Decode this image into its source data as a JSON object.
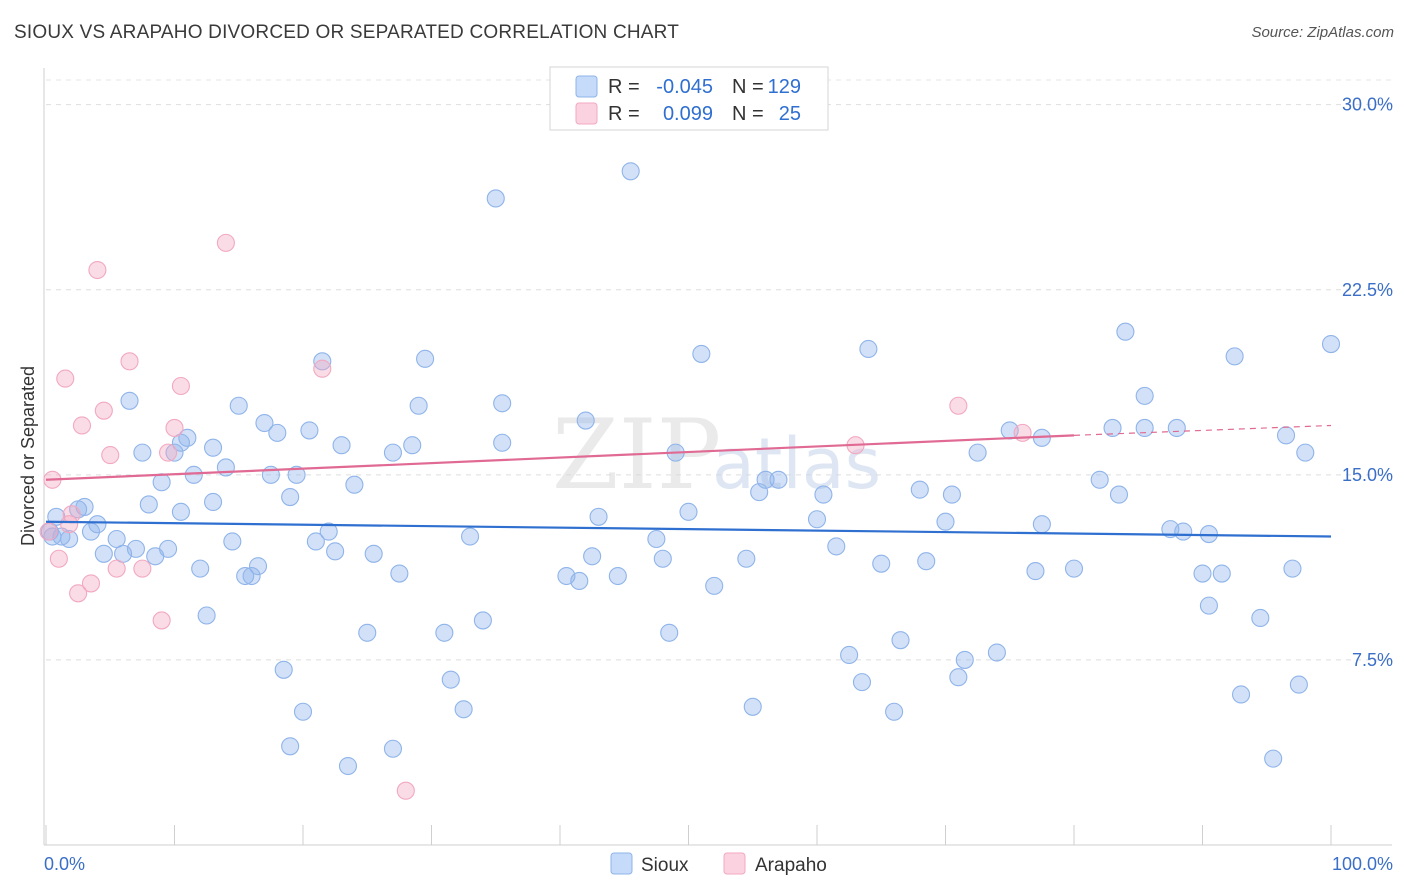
{
  "header": {
    "title": "SIOUX VS ARAPAHO DIVORCED OR SEPARATED CORRELATION CHART",
    "source": "Source: ZipAtlas.com"
  },
  "legend": {
    "rows": [
      {
        "r_label": "R =",
        "r_value": "-0.045",
        "n_label": "N =",
        "n_value": "129",
        "color": "#8fb4ea"
      },
      {
        "r_label": "R =",
        "r_value": "0.099",
        "n_label": "N =",
        "n_value": "25",
        "color": "#f2a8c0"
      }
    ],
    "bottom": [
      {
        "label": "Sioux",
        "color": "#8fb4ea"
      },
      {
        "label": "Arapaho",
        "color": "#f2a8c0"
      }
    ]
  },
  "watermark": {
    "zip": "ZIP",
    "atlas": "atlas"
  },
  "chart_data": {
    "type": "scatter",
    "title": "SIOUX VS ARAPAHO DIVORCED OR SEPARATED CORRELATION CHART",
    "xlabel": "",
    "ylabel": "Divorced or Separated",
    "xlim": [
      0,
      100
    ],
    "ylim": [
      0,
      30
    ],
    "x_tick_labels": [
      "0.0%",
      "100.0%"
    ],
    "y_ticks": [
      7.5,
      15.0,
      22.5,
      30.0
    ],
    "y_tick_labels": [
      "7.5%",
      "15.0%",
      "22.5%",
      "30.0%"
    ],
    "grid": true,
    "legend_position": "top-center",
    "colors": {
      "sioux": "#8fb4ea",
      "arapaho": "#f2a8c0",
      "sioux_line": "#2f6fd0",
      "arapaho_line": "#e06a93"
    },
    "series": [
      {
        "name": "Sioux",
        "trend": {
          "x": [
            0,
            100
          ],
          "y": [
            13.1,
            12.5
          ]
        },
        "points": [
          [
            0.5,
            12.5
          ],
          [
            0.8,
            13.3
          ],
          [
            1.2,
            12.5
          ],
          [
            1.8,
            12.4
          ],
          [
            2.5,
            13.6
          ],
          [
            3.0,
            13.7
          ],
          [
            3.5,
            12.7
          ],
          [
            4.0,
            13.0
          ],
          [
            4.5,
            11.8
          ],
          [
            5.5,
            12.4
          ],
          [
            6.0,
            11.8
          ],
          [
            6.5,
            18.0
          ],
          [
            7.0,
            12.0
          ],
          [
            7.5,
            15.9
          ],
          [
            8.0,
            13.8
          ],
          [
            8.5,
            11.7
          ],
          [
            9.0,
            14.7
          ],
          [
            9.5,
            12.0
          ],
          [
            10.0,
            15.9
          ],
          [
            10.5,
            16.3
          ],
          [
            10.5,
            13.5
          ],
          [
            11.0,
            16.5
          ],
          [
            11.5,
            15.0
          ],
          [
            12.0,
            11.2
          ],
          [
            12.5,
            9.3
          ],
          [
            13.0,
            13.9
          ],
          [
            13.0,
            16.1
          ],
          [
            14.0,
            15.3
          ],
          [
            14.5,
            12.3
          ],
          [
            15.0,
            17.8
          ],
          [
            15.5,
            10.9
          ],
          [
            16.0,
            10.9
          ],
          [
            16.5,
            11.3
          ],
          [
            17.0,
            17.1
          ],
          [
            17.5,
            15.0
          ],
          [
            18.0,
            16.7
          ],
          [
            18.5,
            7.1
          ],
          [
            19.0,
            4.0
          ],
          [
            19.0,
            14.1
          ],
          [
            19.5,
            15.0
          ],
          [
            20.0,
            5.4
          ],
          [
            20.5,
            16.8
          ],
          [
            21.0,
            12.3
          ],
          [
            21.5,
            19.6
          ],
          [
            22.0,
            12.7
          ],
          [
            22.5,
            11.9
          ],
          [
            23.0,
            16.2
          ],
          [
            23.5,
            3.2
          ],
          [
            24.0,
            14.6
          ],
          [
            25.0,
            8.6
          ],
          [
            25.5,
            11.8
          ],
          [
            27.0,
            3.9
          ],
          [
            27.0,
            15.9
          ],
          [
            27.5,
            11.0
          ],
          [
            28.5,
            16.2
          ],
          [
            29.0,
            17.8
          ],
          [
            29.5,
            19.7
          ],
          [
            31.0,
            8.6
          ],
          [
            31.5,
            6.7
          ],
          [
            32.5,
            5.5
          ],
          [
            33.0,
            12.5
          ],
          [
            34.0,
            9.1
          ],
          [
            35.0,
            26.2
          ],
          [
            35.5,
            16.3
          ],
          [
            35.5,
            17.9
          ],
          [
            40.5,
            10.9
          ],
          [
            41.5,
            10.7
          ],
          [
            42.0,
            17.2
          ],
          [
            42.5,
            11.7
          ],
          [
            43.0,
            13.3
          ],
          [
            44.5,
            10.9
          ],
          [
            45.5,
            27.3
          ],
          [
            47.5,
            12.4
          ],
          [
            48.0,
            11.6
          ],
          [
            48.5,
            8.6
          ],
          [
            49.0,
            15.9
          ],
          [
            50.0,
            13.5
          ],
          [
            51.0,
            19.9
          ],
          [
            52.0,
            10.5
          ],
          [
            54.5,
            11.6
          ],
          [
            55.0,
            5.6
          ],
          [
            55.5,
            14.3
          ],
          [
            56.0,
            14.8
          ],
          [
            57.0,
            14.8
          ],
          [
            60.0,
            13.2
          ],
          [
            60.5,
            14.2
          ],
          [
            61.5,
            12.1
          ],
          [
            62.5,
            7.7
          ],
          [
            63.5,
            6.6
          ],
          [
            64.0,
            20.1
          ],
          [
            65.0,
            11.4
          ],
          [
            66.0,
            5.4
          ],
          [
            66.5,
            8.3
          ],
          [
            68.0,
            14.4
          ],
          [
            68.5,
            11.5
          ],
          [
            70.0,
            13.1
          ],
          [
            70.5,
            14.2
          ],
          [
            71.0,
            6.8
          ],
          [
            71.5,
            7.5
          ],
          [
            72.5,
            15.9
          ],
          [
            74.0,
            7.8
          ],
          [
            75.0,
            16.8
          ],
          [
            77.0,
            11.1
          ],
          [
            77.5,
            13.0
          ],
          [
            77.5,
            16.5
          ],
          [
            80.0,
            11.2
          ],
          [
            82.0,
            14.8
          ],
          [
            83.0,
            16.9
          ],
          [
            83.5,
            14.2
          ],
          [
            84.0,
            20.8
          ],
          [
            85.5,
            16.9
          ],
          [
            85.5,
            18.2
          ],
          [
            87.5,
            12.8
          ],
          [
            88.0,
            16.9
          ],
          [
            88.5,
            12.7
          ],
          [
            90.0,
            11.0
          ],
          [
            90.5,
            12.6
          ],
          [
            90.5,
            9.7
          ],
          [
            91.5,
            11.0
          ],
          [
            92.5,
            19.8
          ],
          [
            93.0,
            6.1
          ],
          [
            94.5,
            9.2
          ],
          [
            95.5,
            3.5
          ],
          [
            96.5,
            16.6
          ],
          [
            97.0,
            11.2
          ],
          [
            97.5,
            6.5
          ],
          [
            98.0,
            15.9
          ],
          [
            100.0,
            20.3
          ],
          [
            0.3,
            12.7
          ]
        ]
      },
      {
        "name": "Arapaho",
        "trend": {
          "x": [
            0,
            80
          ],
          "y": [
            14.8,
            16.6
          ]
        },
        "trend_dashed_to": {
          "x": 100,
          "y": 17.0
        },
        "points": [
          [
            0.2,
            12.7
          ],
          [
            0.5,
            14.8
          ],
          [
            1.0,
            11.6
          ],
          [
            1.5,
            18.9
          ],
          [
            1.8,
            13.0
          ],
          [
            2.0,
            13.4
          ],
          [
            2.5,
            10.2
          ],
          [
            2.8,
            17.0
          ],
          [
            3.5,
            10.6
          ],
          [
            4.0,
            23.3
          ],
          [
            4.5,
            17.6
          ],
          [
            5.0,
            15.8
          ],
          [
            5.5,
            11.2
          ],
          [
            6.5,
            19.6
          ],
          [
            7.5,
            11.2
          ],
          [
            9.0,
            9.1
          ],
          [
            9.5,
            15.9
          ],
          [
            10.0,
            16.9
          ],
          [
            10.5,
            18.6
          ],
          [
            14.0,
            24.4
          ],
          [
            21.5,
            19.3
          ],
          [
            28.0,
            2.2
          ],
          [
            63.0,
            16.2
          ],
          [
            71.0,
            17.8
          ],
          [
            76.0,
            16.7
          ]
        ]
      }
    ]
  }
}
